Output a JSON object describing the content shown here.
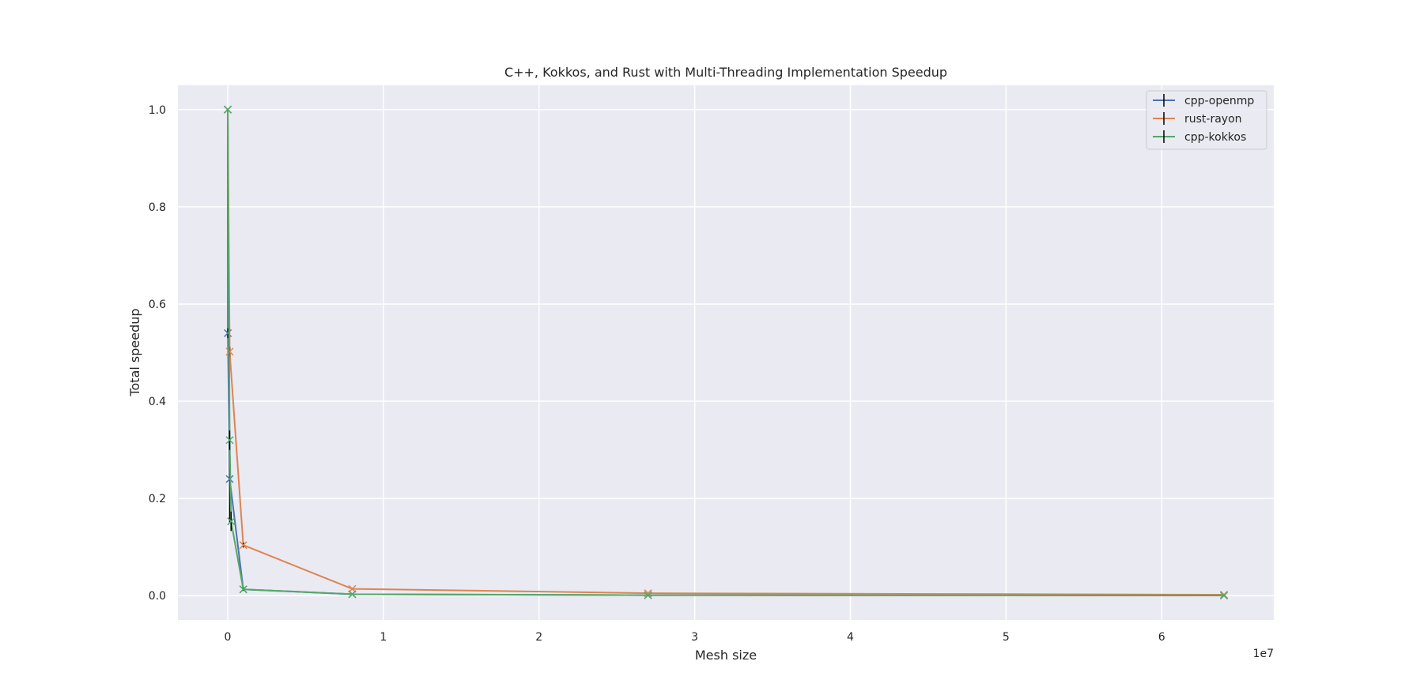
{
  "chart_data": {
    "type": "line",
    "title": "C++, Kokkos, and Rust with Multi-Threading Implementation Speedup",
    "xlabel": "Mesh size",
    "ylabel": "Total speedup",
    "x_offset_label": "1e7",
    "xlim": [
      -3200000,
      67200000
    ],
    "ylim": [
      -0.05,
      1.05
    ],
    "xticks": [
      0,
      10000000,
      20000000,
      30000000,
      40000000,
      50000000,
      60000000
    ],
    "xtick_labels": [
      "0",
      "1",
      "2",
      "3",
      "4",
      "5",
      "6"
    ],
    "yticks": [
      0.0,
      0.2,
      0.4,
      0.6,
      0.8,
      1.0
    ],
    "ytick_labels": [
      "0.0",
      "0.2",
      "0.4",
      "0.6",
      "0.8",
      "1.0"
    ],
    "grid": true,
    "legend_position": "top-right",
    "marker": "x",
    "series": [
      {
        "name": "cpp-openmp",
        "color": "#4c72b0",
        "x": [
          1000,
          8000,
          125000,
          1000000,
          8000000,
          27000000,
          64000000
        ],
        "y": [
          1.0,
          0.54,
          0.24,
          0.013,
          0.003,
          0.001,
          0.0005
        ],
        "yerr": [
          0,
          0.01,
          0.09,
          0.003,
          0.001,
          0.0005,
          0.0002
        ]
      },
      {
        "name": "rust-rayon",
        "color": "#dd8452",
        "x": [
          1000,
          125000,
          1000000,
          8000000,
          27000000,
          64000000
        ],
        "y": [
          1.0,
          0.502,
          0.104,
          0.014,
          0.005,
          0.002
        ],
        "yerr": [
          0,
          0.01,
          0.005,
          0.002,
          0.001,
          0.0005
        ]
      },
      {
        "name": "cpp-kokkos",
        "color": "#55a868",
        "x": [
          1000,
          125000,
          216000,
          1000000,
          8000000,
          27000000,
          64000000
        ],
        "y": [
          1.0,
          0.32,
          0.153,
          0.013,
          0.003,
          0.001,
          0.0005
        ],
        "yerr": [
          0,
          0.02,
          0.02,
          0.003,
          0.001,
          0.0005,
          0.0002
        ]
      }
    ]
  }
}
